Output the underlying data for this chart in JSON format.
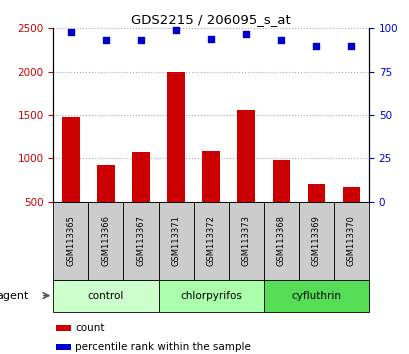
{
  "title": "GDS2215 / 206095_s_at",
  "samples": [
    "GSM113365",
    "GSM113366",
    "GSM113367",
    "GSM113371",
    "GSM113372",
    "GSM113373",
    "GSM113368",
    "GSM113369",
    "GSM113370"
  ],
  "counts": [
    1480,
    920,
    1070,
    2000,
    1090,
    1560,
    980,
    700,
    670
  ],
  "percentiles": [
    98,
    93,
    93,
    99,
    94,
    97,
    93,
    90,
    90
  ],
  "groups": [
    {
      "label": "control",
      "indices": [
        0,
        1,
        2
      ],
      "color": "#ccffcc"
    },
    {
      "label": "chlorpyrifos",
      "indices": [
        3,
        4,
        5
      ],
      "color": "#aaffaa"
    },
    {
      "label": "cyfluthrin",
      "indices": [
        6,
        7,
        8
      ],
      "color": "#55dd55"
    }
  ],
  "ylim_left": [
    500,
    2500
  ],
  "ylim_right": [
    0,
    100
  ],
  "yticks_left": [
    500,
    1000,
    1500,
    2000,
    2500
  ],
  "yticks_right": [
    0,
    25,
    50,
    75,
    100
  ],
  "bar_color": "#cc0000",
  "dot_color": "#0000cc",
  "bar_bottom": 500,
  "agent_label": "agent",
  "legend_count": "count",
  "legend_percentile": "percentile rank within the sample",
  "sample_box_color": "#cccccc",
  "grid_color": "#aaaaaa",
  "fig_width": 4.1,
  "fig_height": 3.54
}
